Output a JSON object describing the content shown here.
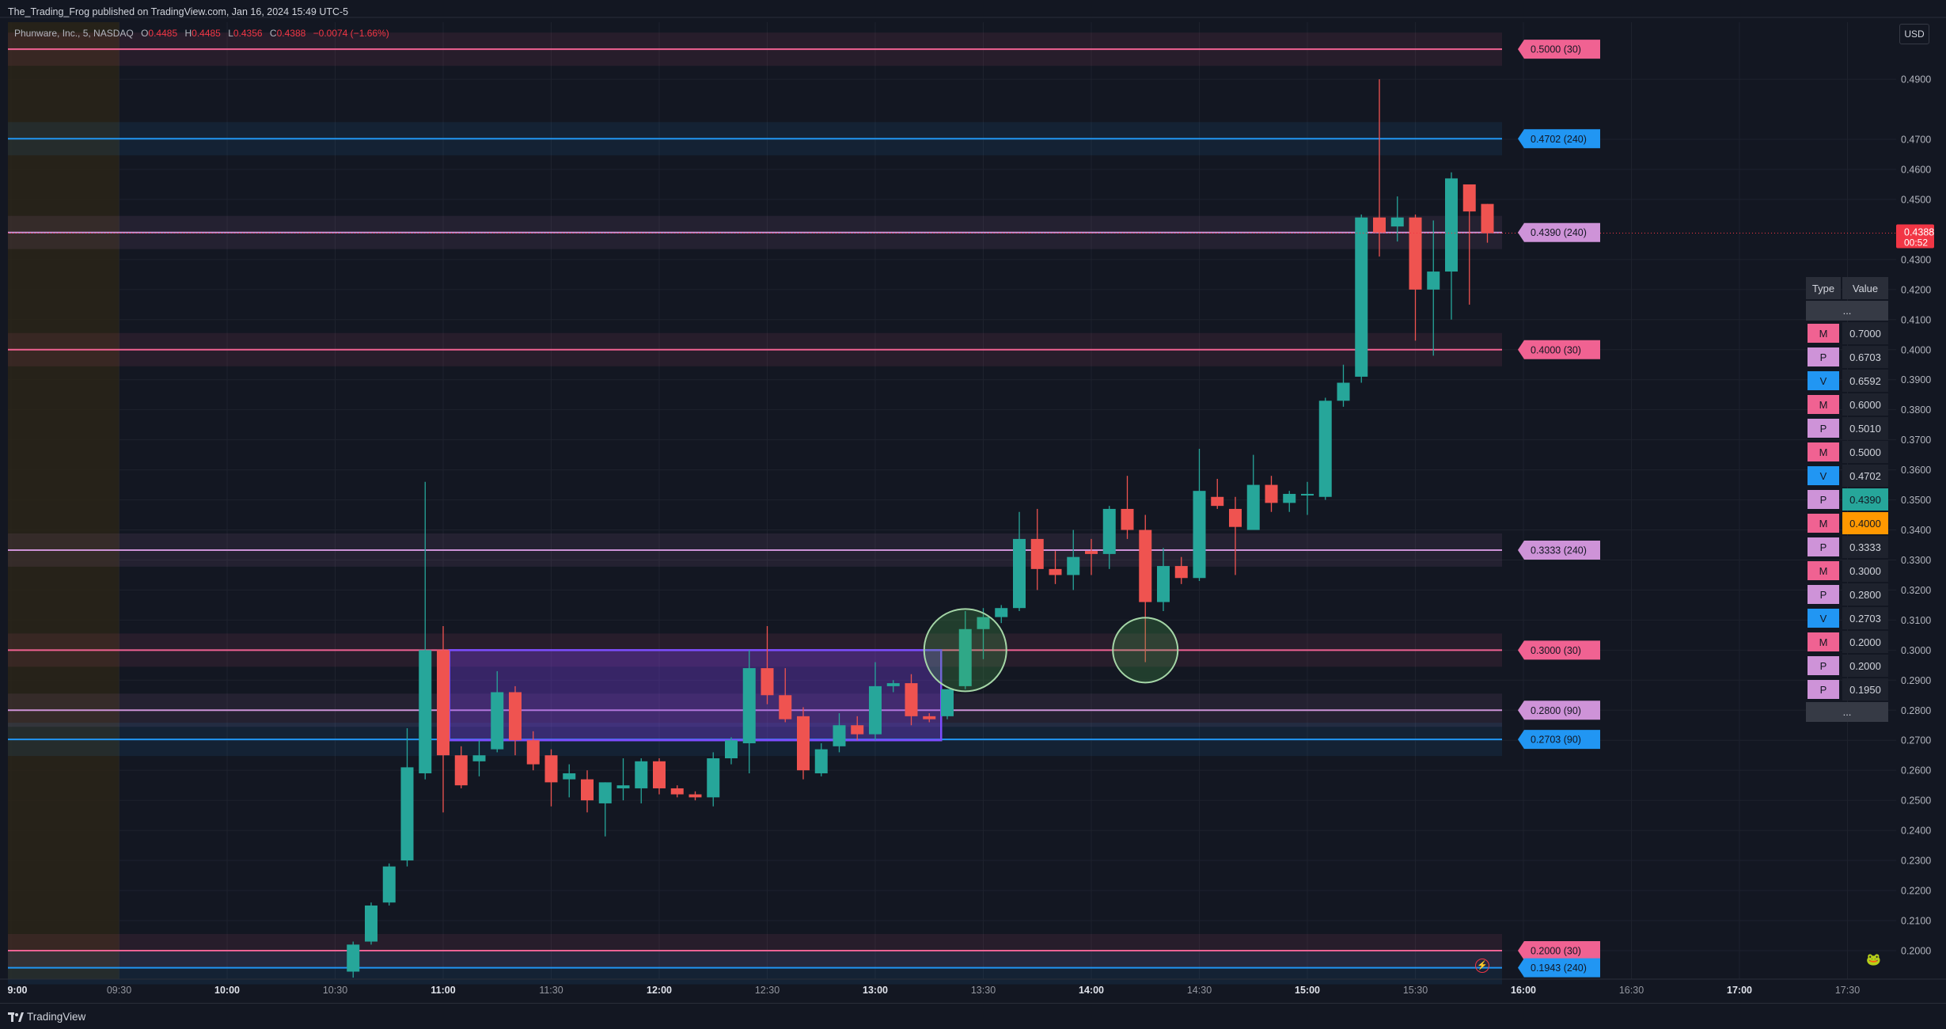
{
  "header": {
    "publisher": "The_Trading_Frog published on TradingView.com, Jan 16, 2024 15:49 UTC-5"
  },
  "legend": {
    "symbol": "Phunware, Inc., 5, NASDAQ",
    "o_label": "O",
    "o": "0.4485",
    "h_label": "H",
    "h": "0.4485",
    "l_label": "L",
    "l": "0.4356",
    "c_label": "C",
    "c": "0.4388",
    "change": "−0.0074 (−1.66%)"
  },
  "currency": "USD",
  "price_badge": {
    "price": "0.4388",
    "countdown": "00:52"
  },
  "footer": {
    "brand": "TradingView"
  },
  "colors": {
    "up": "#26a69a",
    "down": "#ef5350",
    "M": "#f06292",
    "P": "#ce93d8",
    "V": "#2196f3",
    "bg": "#131722"
  },
  "level_table": {
    "header_type": "Type",
    "header_value": "Value",
    "ellipsis": "...",
    "rows": [
      {
        "type": "M",
        "value": "0.7000"
      },
      {
        "type": "P",
        "value": "0.6703"
      },
      {
        "type": "V",
        "value": "0.6592"
      },
      {
        "type": "M",
        "value": "0.6000"
      },
      {
        "type": "P",
        "value": "0.5010"
      },
      {
        "type": "M",
        "value": "0.5000"
      },
      {
        "type": "V",
        "value": "0.4702"
      },
      {
        "type": "P",
        "value": "0.4390",
        "highlight": "#26a69a"
      },
      {
        "type": "M",
        "value": "0.4000",
        "highlight": "#ff9800"
      },
      {
        "type": "P",
        "value": "0.3333"
      },
      {
        "type": "M",
        "value": "0.3000"
      },
      {
        "type": "P",
        "value": "0.2800"
      },
      {
        "type": "V",
        "value": "0.2703"
      },
      {
        "type": "M",
        "value": "0.2000"
      },
      {
        "type": "P",
        "value": "0.2000"
      },
      {
        "type": "P",
        "value": "0.1950"
      }
    ]
  },
  "chart_data": {
    "type": "candlestick",
    "timeframe": "5",
    "ylim": [
      0.1905,
      0.509
    ],
    "y_ticks": [
      0.49,
      0.47,
      0.46,
      0.45,
      0.43,
      0.42,
      0.41,
      0.4,
      0.39,
      0.38,
      0.37,
      0.36,
      0.35,
      0.34,
      0.33,
      0.32,
      0.31,
      0.3,
      0.29,
      0.28,
      0.27,
      0.26,
      0.25,
      0.24,
      0.23,
      0.22,
      0.21,
      0.2
    ],
    "y_tick_labels": [
      "0.4900",
      "0.4700",
      "0.4600",
      "0.4500",
      "0.4300",
      "0.4200",
      "0.4100",
      "0.4000",
      "0.3900",
      "0.3800",
      "0.3700",
      "0.3600",
      "0.3500",
      "0.3400",
      "0.3300",
      "0.3200",
      "0.3100",
      "0.3000",
      "0.2900",
      "0.2800",
      "0.2700",
      "0.2600",
      "0.2500",
      "0.2400",
      "0.2300",
      "0.2200",
      "0.2100",
      "0.2000"
    ],
    "x_ticks": [
      "9:00",
      "09:30",
      "10:00",
      "10:30",
      "11:00",
      "11:30",
      "12:00",
      "12:30",
      "13:00",
      "13:30",
      "14:00",
      "14:30",
      "15:00",
      "15:30",
      "16:00",
      "16:30",
      "17:00",
      "17:30"
    ],
    "x_ticks_bold": [
      "9:00",
      "10:00",
      "11:00",
      "12:00",
      "13:00",
      "14:00",
      "15:00",
      "16:00",
      "17:00"
    ],
    "premarket_shade": [
      "9:00",
      "09:30"
    ],
    "candles": [
      {
        "t": "10:35",
        "o": 0.193,
        "h": 0.203,
        "l": 0.191,
        "c": 0.202
      },
      {
        "t": "10:40",
        "o": 0.203,
        "h": 0.216,
        "l": 0.202,
        "c": 0.215
      },
      {
        "t": "10:45",
        "o": 0.216,
        "h": 0.229,
        "l": 0.215,
        "c": 0.228
      },
      {
        "t": "10:50",
        "o": 0.23,
        "h": 0.274,
        "l": 0.228,
        "c": 0.261
      },
      {
        "t": "10:55",
        "o": 0.259,
        "h": 0.356,
        "l": 0.257,
        "c": 0.3
      },
      {
        "t": "11:00",
        "o": 0.3,
        "h": 0.308,
        "l": 0.246,
        "c": 0.265
      },
      {
        "t": "11:05",
        "o": 0.265,
        "h": 0.268,
        "l": 0.254,
        "c": 0.255
      },
      {
        "t": "11:10",
        "o": 0.263,
        "h": 0.27,
        "l": 0.258,
        "c": 0.265
      },
      {
        "t": "11:15",
        "o": 0.267,
        "h": 0.293,
        "l": 0.266,
        "c": 0.286
      },
      {
        "t": "11:20",
        "o": 0.286,
        "h": 0.288,
        "l": 0.265,
        "c": 0.27
      },
      {
        "t": "11:25",
        "o": 0.27,
        "h": 0.273,
        "l": 0.26,
        "c": 0.262
      },
      {
        "t": "11:30",
        "o": 0.265,
        "h": 0.267,
        "l": 0.248,
        "c": 0.256
      },
      {
        "t": "11:35",
        "o": 0.257,
        "h": 0.262,
        "l": 0.251,
        "c": 0.259
      },
      {
        "t": "11:40",
        "o": 0.257,
        "h": 0.26,
        "l": 0.246,
        "c": 0.25
      },
      {
        "t": "11:45",
        "o": 0.249,
        "h": 0.256,
        "l": 0.238,
        "c": 0.256
      },
      {
        "t": "11:50",
        "o": 0.254,
        "h": 0.264,
        "l": 0.25,
        "c": 0.255
      },
      {
        "t": "11:55",
        "o": 0.254,
        "h": 0.264,
        "l": 0.249,
        "c": 0.263
      },
      {
        "t": "12:00",
        "o": 0.263,
        "h": 0.264,
        "l": 0.252,
        "c": 0.254
      },
      {
        "t": "12:05",
        "o": 0.254,
        "h": 0.255,
        "l": 0.251,
        "c": 0.252
      },
      {
        "t": "12:10",
        "o": 0.252,
        "h": 0.253,
        "l": 0.25,
        "c": 0.251
      },
      {
        "t": "12:15",
        "o": 0.251,
        "h": 0.266,
        "l": 0.248,
        "c": 0.264
      },
      {
        "t": "12:20",
        "o": 0.264,
        "h": 0.271,
        "l": 0.262,
        "c": 0.27
      },
      {
        "t": "12:25",
        "o": 0.269,
        "h": 0.3,
        "l": 0.259,
        "c": 0.294
      },
      {
        "t": "12:30",
        "o": 0.294,
        "h": 0.308,
        "l": 0.282,
        "c": 0.285
      },
      {
        "t": "12:35",
        "o": 0.285,
        "h": 0.294,
        "l": 0.276,
        "c": 0.277
      },
      {
        "t": "12:40",
        "o": 0.278,
        "h": 0.281,
        "l": 0.257,
        "c": 0.26
      },
      {
        "t": "12:45",
        "o": 0.259,
        "h": 0.269,
        "l": 0.258,
        "c": 0.267
      },
      {
        "t": "12:50",
        "o": 0.268,
        "h": 0.279,
        "l": 0.266,
        "c": 0.275
      },
      {
        "t": "12:55",
        "o": 0.275,
        "h": 0.278,
        "l": 0.27,
        "c": 0.272
      },
      {
        "t": "13:00",
        "o": 0.272,
        "h": 0.296,
        "l": 0.27,
        "c": 0.288
      },
      {
        "t": "13:05",
        "o": 0.288,
        "h": 0.29,
        "l": 0.286,
        "c": 0.289
      },
      {
        "t": "13:10",
        "o": 0.289,
        "h": 0.292,
        "l": 0.275,
        "c": 0.278
      },
      {
        "t": "13:15",
        "o": 0.278,
        "h": 0.279,
        "l": 0.276,
        "c": 0.277
      },
      {
        "t": "13:20",
        "o": 0.278,
        "h": 0.287,
        "l": 0.277,
        "c": 0.287
      },
      {
        "t": "13:25",
        "o": 0.288,
        "h": 0.313,
        "l": 0.287,
        "c": 0.307
      },
      {
        "t": "13:30",
        "o": 0.307,
        "h": 0.314,
        "l": 0.297,
        "c": 0.311
      },
      {
        "t": "13:35",
        "o": 0.311,
        "h": 0.315,
        "l": 0.309,
        "c": 0.314
      },
      {
        "t": "13:40",
        "o": 0.314,
        "h": 0.346,
        "l": 0.313,
        "c": 0.337
      },
      {
        "t": "13:45",
        "o": 0.337,
        "h": 0.347,
        "l": 0.32,
        "c": 0.327
      },
      {
        "t": "13:50",
        "o": 0.327,
        "h": 0.333,
        "l": 0.322,
        "c": 0.325
      },
      {
        "t": "13:55",
        "o": 0.325,
        "h": 0.34,
        "l": 0.32,
        "c": 0.331
      },
      {
        "t": "14:00",
        "o": 0.333,
        "h": 0.337,
        "l": 0.325,
        "c": 0.332
      },
      {
        "t": "14:05",
        "o": 0.332,
        "h": 0.348,
        "l": 0.327,
        "c": 0.347
      },
      {
        "t": "14:10",
        "o": 0.347,
        "h": 0.358,
        "l": 0.337,
        "c": 0.34
      },
      {
        "t": "14:15",
        "o": 0.34,
        "h": 0.345,
        "l": 0.296,
        "c": 0.316
      },
      {
        "t": "14:20",
        "o": 0.316,
        "h": 0.334,
        "l": 0.313,
        "c": 0.328
      },
      {
        "t": "14:25",
        "o": 0.328,
        "h": 0.331,
        "l": 0.322,
        "c": 0.324
      },
      {
        "t": "14:30",
        "o": 0.324,
        "h": 0.367,
        "l": 0.323,
        "c": 0.353
      },
      {
        "t": "14:35",
        "o": 0.351,
        "h": 0.357,
        "l": 0.347,
        "c": 0.348
      },
      {
        "t": "14:40",
        "o": 0.347,
        "h": 0.351,
        "l": 0.325,
        "c": 0.341
      },
      {
        "t": "14:45",
        "o": 0.34,
        "h": 0.365,
        "l": 0.34,
        "c": 0.355
      },
      {
        "t": "14:50",
        "o": 0.355,
        "h": 0.358,
        "l": 0.346,
        "c": 0.349
      },
      {
        "t": "14:55",
        "o": 0.349,
        "h": 0.353,
        "l": 0.346,
        "c": 0.352
      },
      {
        "t": "15:00",
        "o": 0.352,
        "h": 0.356,
        "l": 0.345,
        "c": 0.352
      },
      {
        "t": "15:05",
        "o": 0.351,
        "h": 0.384,
        "l": 0.35,
        "c": 0.383
      },
      {
        "t": "15:10",
        "o": 0.383,
        "h": 0.395,
        "l": 0.381,
        "c": 0.389
      },
      {
        "t": "15:15",
        "o": 0.391,
        "h": 0.445,
        "l": 0.389,
        "c": 0.444
      },
      {
        "t": "15:20",
        "o": 0.444,
        "h": 0.49,
        "l": 0.431,
        "c": 0.439
      },
      {
        "t": "15:25",
        "o": 0.441,
        "h": 0.451,
        "l": 0.436,
        "c": 0.444
      },
      {
        "t": "15:30",
        "o": 0.444,
        "h": 0.445,
        "l": 0.403,
        "c": 0.42
      },
      {
        "t": "15:35",
        "o": 0.42,
        "h": 0.443,
        "l": 0.398,
        "c": 0.426
      },
      {
        "t": "15:40",
        "o": 0.426,
        "h": 0.459,
        "l": 0.41,
        "c": 0.457
      },
      {
        "t": "15:45",
        "o": 0.455,
        "h": 0.455,
        "l": 0.415,
        "c": 0.446
      },
      {
        "t": "15:50",
        "o": 0.4485,
        "h": 0.4485,
        "l": 0.4356,
        "c": 0.4388
      }
    ],
    "levels": [
      {
        "type": "M",
        "price": 0.5,
        "label": "0.5000 (30)"
      },
      {
        "type": "V",
        "price": 0.4702,
        "label": "0.4702 (240)"
      },
      {
        "type": "P",
        "price": 0.439,
        "label": "0.4390 (240)"
      },
      {
        "type": "M",
        "price": 0.4,
        "label": "0.4000 (30)"
      },
      {
        "type": "P",
        "price": 0.3333,
        "label": "0.3333 (240)"
      },
      {
        "type": "M",
        "price": 0.3,
        "label": "0.3000 (30)"
      },
      {
        "type": "P",
        "price": 0.28,
        "label": "0.2800 (90)"
      },
      {
        "type": "V",
        "price": 0.2703,
        "label": "0.2703 (90)"
      },
      {
        "type": "M",
        "price": 0.2,
        "label": "0.2000 (30)"
      },
      {
        "type": "V",
        "price": 0.1943,
        "label": "0.1943 (240)"
      }
    ],
    "range_box": {
      "t_start": "11:05",
      "t_end": "13:15",
      "top": 0.3,
      "bottom": 0.27
    },
    "circles": [
      {
        "t": "13:25",
        "price": 0.3
      },
      {
        "t": "14:15",
        "price": 0.3
      }
    ],
    "last_price": 0.4388
  }
}
